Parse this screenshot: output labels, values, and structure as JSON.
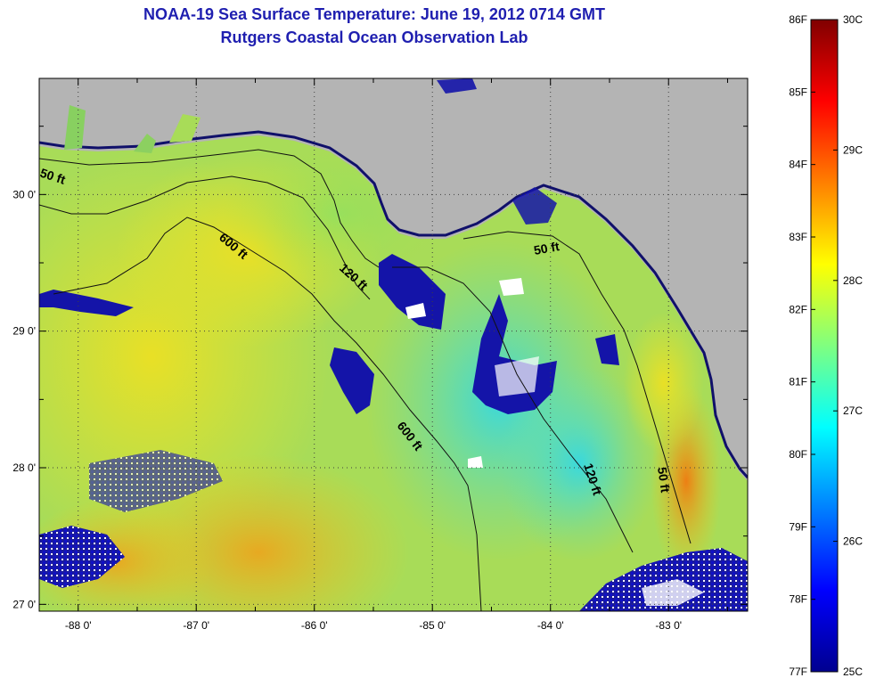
{
  "header": {
    "title": "NOAA-19 Sea Surface Temperature:  June 19, 2012 0714 GMT",
    "subtitle": "Rutgers Coastal Ocean Observation Lab"
  },
  "map": {
    "lon_range": [
      -88.33,
      -82.33
    ],
    "lat_range": [
      26.95,
      30.85
    ],
    "lon_ticks": [
      {
        "value": -88,
        "label": "-88 0'"
      },
      {
        "value": -87,
        "label": "-87 0'"
      },
      {
        "value": -86,
        "label": "-86 0'"
      },
      {
        "value": -85,
        "label": "-85 0'"
      },
      {
        "value": -84,
        "label": "-84 0'"
      },
      {
        "value": -83,
        "label": "-83 0'"
      }
    ],
    "lat_ticks": [
      {
        "value": 27,
        "label": "27 0'"
      },
      {
        "value": 28,
        "label": "28 0'"
      },
      {
        "value": 29,
        "label": "29 0'"
      },
      {
        "value": 30,
        "label": "30 0'"
      }
    ],
    "grid": "dotted",
    "land_color": "#b4b4b4",
    "contour_labels": [
      "50 ft",
      "600 ft",
      "120 ft",
      "50 ft",
      "600 ft",
      "120 ft",
      "50 ft"
    ]
  },
  "colorbar": {
    "scale": "jet",
    "fahrenheit_labels": [
      "86F",
      "85F",
      "84F",
      "83F",
      "82F",
      "81F",
      "80F",
      "79F",
      "78F",
      "77F"
    ],
    "celsius_labels": [
      "30C",
      "29C",
      "28C",
      "27C",
      "26C",
      "25C"
    ]
  }
}
